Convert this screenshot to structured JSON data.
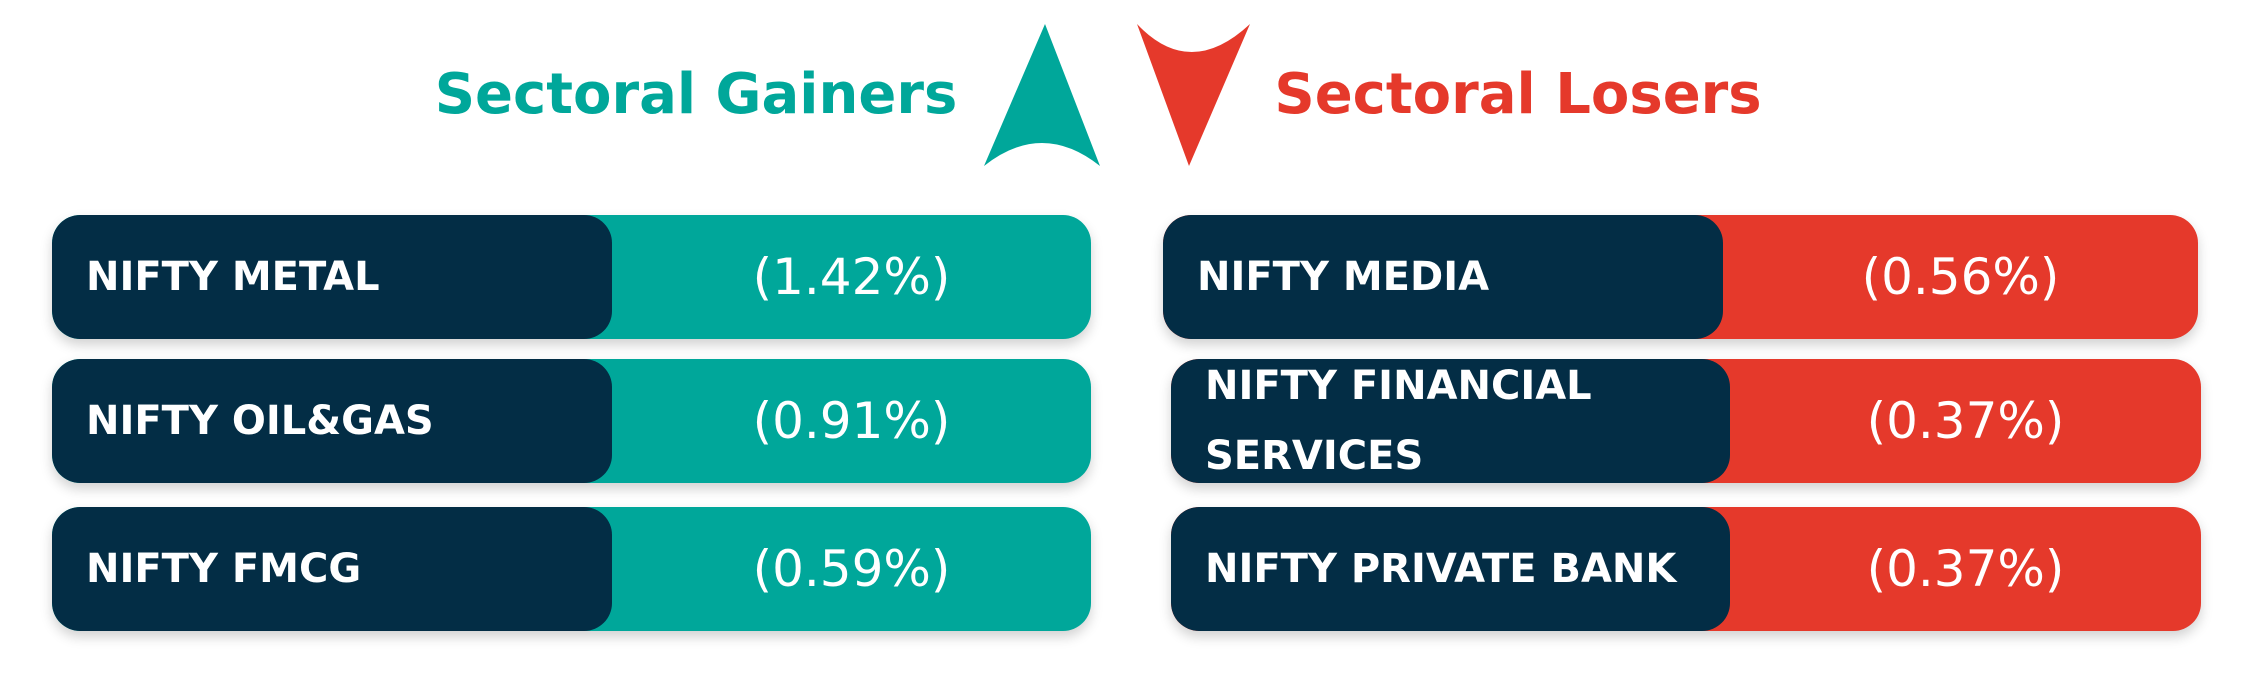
{
  "gainers": {
    "title": "Sectoral Gainers",
    "rows": [
      {
        "sector": "NIFTY METAL",
        "change": "(1.42%)"
      },
      {
        "sector": "NIFTY OIL&GAS",
        "change": "(0.91%)"
      },
      {
        "sector": "NIFTY FMCG",
        "change": "(0.59%)"
      }
    ]
  },
  "losers": {
    "title": "Sectoral Losers",
    "rows": [
      {
        "sector": "NIFTY MEDIA",
        "change": "(0.56%)"
      },
      {
        "sector": "NIFTY FINANCIAL SERVICES",
        "change": "(0.37%)"
      },
      {
        "sector": "NIFTY PRIVATE BANK",
        "change": "(0.37%)"
      }
    ]
  }
}
